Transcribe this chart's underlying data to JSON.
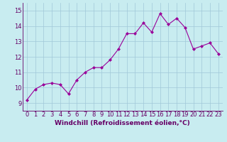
{
  "hours": [
    0,
    1,
    2,
    3,
    4,
    5,
    6,
    7,
    8,
    9,
    10,
    11,
    12,
    13,
    14,
    15,
    16,
    17,
    18,
    19,
    20,
    21,
    22,
    23
  ],
  "values": [
    9.2,
    9.9,
    10.2,
    10.3,
    10.2,
    9.6,
    10.5,
    11.0,
    11.3,
    11.3,
    11.8,
    12.5,
    13.5,
    13.5,
    14.2,
    13.6,
    14.8,
    14.1,
    14.5,
    13.9,
    12.5,
    12.7,
    12.9,
    12.2
  ],
  "line_color": "#990099",
  "marker": "D",
  "marker_size": 2,
  "bg_color": "#c8ecf0",
  "grid_color": "#a0c8d8",
  "xlabel": "Windchill (Refroidissement éolien,°C)",
  "ylim": [
    8.5,
    15.5
  ],
  "xlim": [
    -0.5,
    23.5
  ],
  "yticks": [
    9,
    10,
    11,
    12,
    13,
    14,
    15
  ],
  "xticks": [
    0,
    1,
    2,
    3,
    4,
    5,
    6,
    7,
    8,
    9,
    10,
    11,
    12,
    13,
    14,
    15,
    16,
    17,
    18,
    19,
    20,
    21,
    22,
    23
  ],
  "label_fontsize": 6.5,
  "tick_fontsize": 6.0,
  "text_color": "#660066",
  "spine_color": "#660066"
}
